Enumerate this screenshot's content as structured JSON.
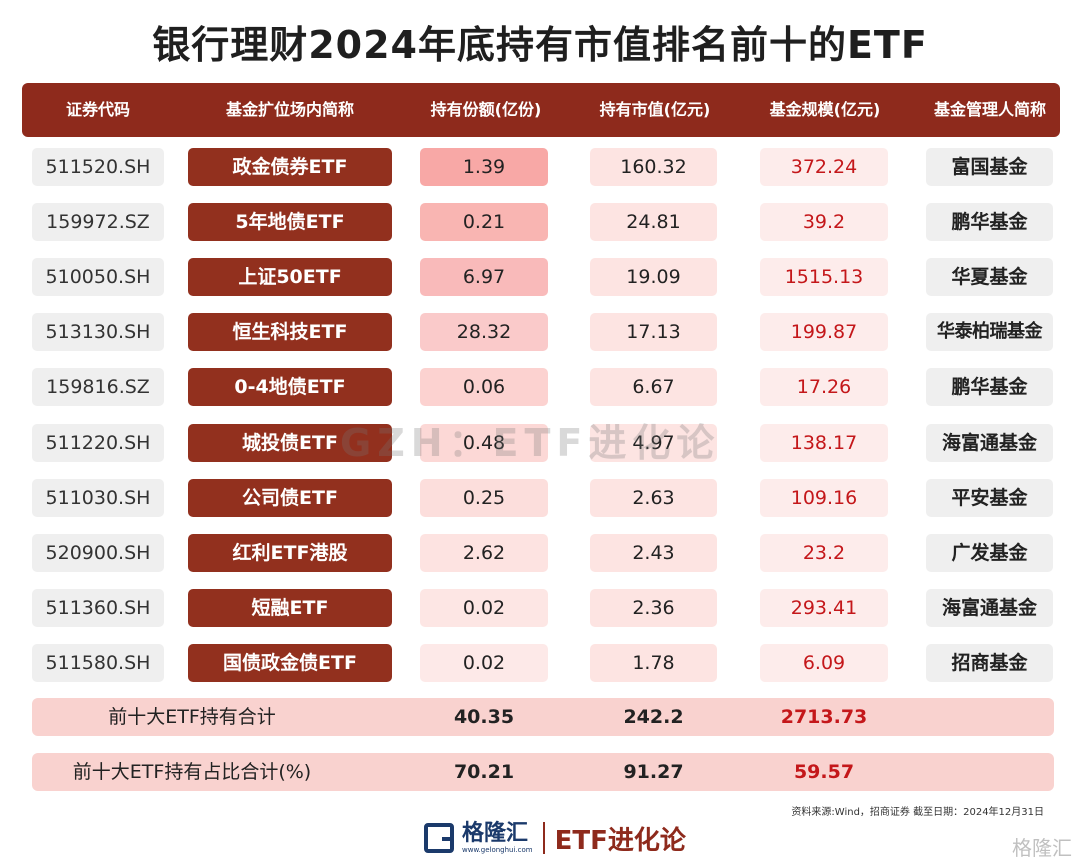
{
  "title": "银行理财2024年底持有市值排名前十的ETF",
  "headers": {
    "code": "证券代码",
    "name": "基金扩位场内简称",
    "shares": "持有份额(亿份)",
    "value": "持有市值(亿元)",
    "scale": "基金规模(亿元)",
    "manager": "基金管理人简称"
  },
  "rows": [
    {
      "code": "511520.SH",
      "name": "政金债券ETF",
      "shares": "1.39",
      "value": "160.32",
      "scale": "372.24",
      "manager": "富国基金",
      "shares_shade": "#f8a8a6"
    },
    {
      "code": "159972.SZ",
      "name": "5年地债ETF",
      "shares": "0.21",
      "value": "24.81",
      "scale": "39.2",
      "manager": "鹏华基金",
      "shares_shade": "#f9b5b2"
    },
    {
      "code": "510050.SH",
      "name": "上证50ETF",
      "shares": "6.97",
      "value": "19.09",
      "scale": "1515.13",
      "manager": "华夏基金",
      "shares_shade": "#f9baba"
    },
    {
      "code": "513130.SH",
      "name": "恒生科技ETF",
      "shares": "28.32",
      "value": "17.13",
      "scale": "199.87",
      "manager": "华泰柏瑞基金",
      "shares_shade": "#facaca"
    },
    {
      "code": "159816.SZ",
      "name": "0-4地债ETF",
      "shares": "0.06",
      "value": "6.67",
      "scale": "17.26",
      "manager": "鹏华基金",
      "shares_shade": "#fcd2d0"
    },
    {
      "code": "511220.SH",
      "name": "城投债ETF",
      "shares": "0.48",
      "value": "4.97",
      "scale": "138.17",
      "manager": "海富通基金",
      "shares_shade": "#fcd8d6"
    },
    {
      "code": "511030.SH",
      "name": "公司债ETF",
      "shares": "0.25",
      "value": "2.63",
      "scale": "109.16",
      "manager": "平安基金",
      "shares_shade": "#fcdedc"
    },
    {
      "code": "520900.SH",
      "name": "红利ETF港股",
      "shares": "2.62",
      "value": "2.43",
      "scale": "23.2",
      "manager": "广发基金",
      "shares_shade": "#fde3e1"
    },
    {
      "code": "511360.SH",
      "name": "短融ETF",
      "shares": "0.02",
      "value": "2.36",
      "scale": "293.41",
      "manager": "海富通基金",
      "shares_shade": "#fde6e4"
    },
    {
      "code": "511580.SH",
      "name": "国债政金债ETF",
      "shares": "0.02",
      "value": "1.78",
      "scale": "6.09",
      "manager": "招商基金",
      "shares_shade": "#fde9e8"
    }
  ],
  "summary": [
    {
      "label": "前十大ETF持有合计",
      "shares": "40.35",
      "value": "242.2",
      "scale": "2713.73"
    },
    {
      "label": "前十大ETF持有占比合计(%)",
      "shares": "70.21",
      "value": "91.27",
      "scale": "59.57"
    }
  ],
  "watermark": "GZH：ETF进化论",
  "source": "资料来源:Wind，招商证券 截至日期：2024年12月31日",
  "footer": {
    "brand": "格隆汇",
    "brand_url": "www.gelonghui.com",
    "channel": "ETF进化论",
    "corner": "格隆汇"
  }
}
